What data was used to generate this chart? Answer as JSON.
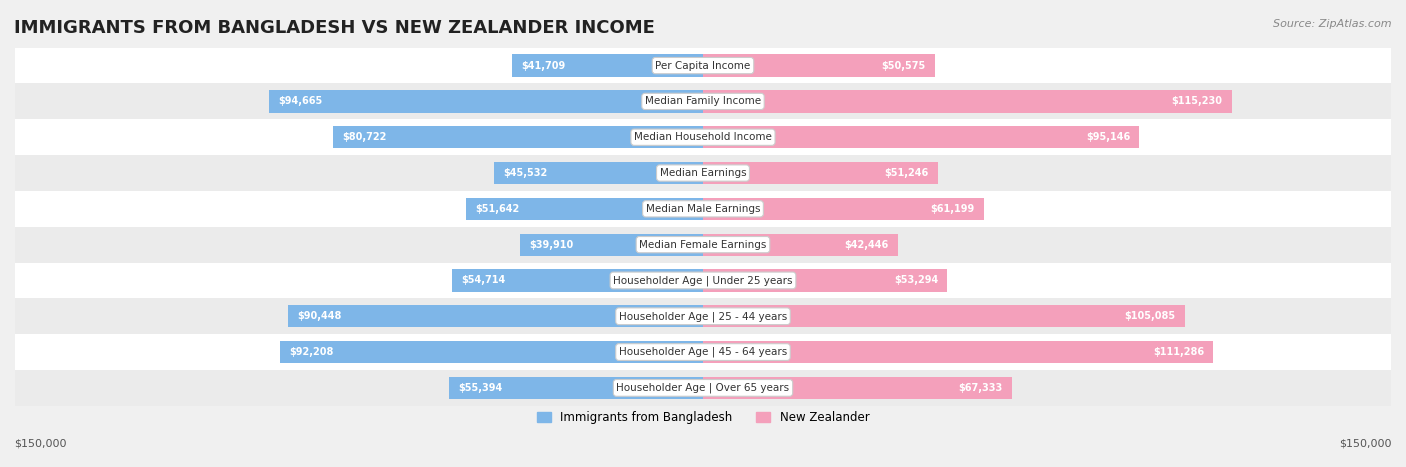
{
  "title": "IMMIGRANTS FROM BANGLADESH VS NEW ZEALANDER INCOME",
  "source": "Source: ZipAtlas.com",
  "categories": [
    "Per Capita Income",
    "Median Family Income",
    "Median Household Income",
    "Median Earnings",
    "Median Male Earnings",
    "Median Female Earnings",
    "Householder Age | Under 25 years",
    "Householder Age | 25 - 44 years",
    "Householder Age | 45 - 64 years",
    "Householder Age | Over 65 years"
  ],
  "bangladesh_values": [
    41709,
    94665,
    80722,
    45532,
    51642,
    39910,
    54714,
    90448,
    92208,
    55394
  ],
  "newzealand_values": [
    50575,
    115230,
    95146,
    51246,
    61199,
    42446,
    53294,
    105085,
    111286,
    67333
  ],
  "bangladesh_labels": [
    "$41,709",
    "$94,665",
    "$80,722",
    "$45,532",
    "$51,642",
    "$39,910",
    "$54,714",
    "$90,448",
    "$92,208",
    "$55,394"
  ],
  "newzealand_labels": [
    "$50,575",
    "$115,230",
    "$95,146",
    "$51,246",
    "$61,199",
    "$42,446",
    "$53,294",
    "$105,085",
    "$111,286",
    "$67,333"
  ],
  "bangladesh_color": "#7EB6E8",
  "newzealand_color": "#F4A0BB",
  "bangladesh_label_color_inside": "#2E6DA4",
  "newzealand_label_color_inside": "#C0395A",
  "max_value": 150000,
  "bg_color": "#f5f5f5",
  "row_bg_color": "#ebebeb",
  "legend_bangladesh": "Immigrants from Bangladesh",
  "legend_newzealand": "New Zealander",
  "xlabel_left": "$150,000",
  "xlabel_right": "$150,000"
}
